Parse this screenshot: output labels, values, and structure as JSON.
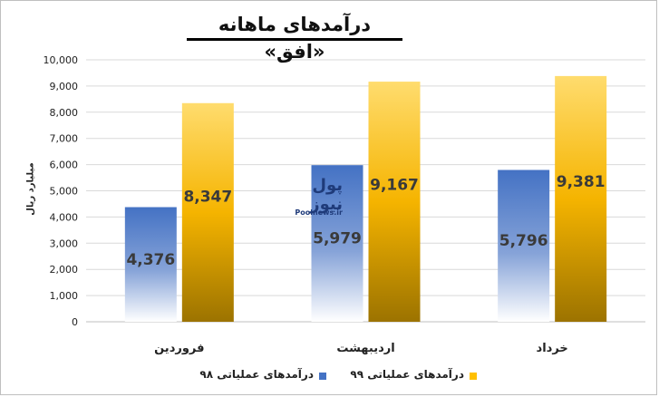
{
  "chart_data": {
    "type": "bar",
    "title": "درآمدهای ماهانه «افق»",
    "ylabel": "میلیارد ریال",
    "xlabel": "",
    "categories": [
      "فروردین",
      "اردیبهشت",
      "خرداد"
    ],
    "series": [
      {
        "name": "درآمدهای عملیاتی ۹۸",
        "values": [
          4376,
          5979,
          5796
        ],
        "labels": [
          "4,376",
          "5,979",
          "5,796"
        ],
        "color": "#4472c4"
      },
      {
        "name": "درآمدهای عملیاتی ۹۹",
        "values": [
          8347,
          9167,
          9381
        ],
        "labels": [
          "8,347",
          "9,167",
          "9,381"
        ],
        "color": "#ffc000"
      }
    ],
    "ylim": [
      0,
      10000
    ],
    "yticks": [
      "0",
      "1,000",
      "2,000",
      "3,000",
      "4,000",
      "5,000",
      "6,000",
      "7,000",
      "8,000",
      "9,000",
      "10,000"
    ],
    "grid": true,
    "legend_position": "bottom"
  },
  "watermark": {
    "name": "پول نیوز",
    "url": "Poolnews.ir"
  }
}
